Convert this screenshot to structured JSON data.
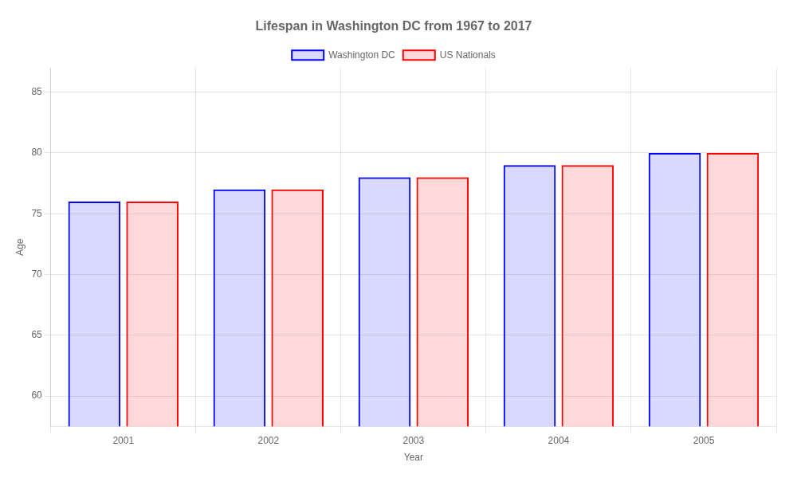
{
  "chart_data": {
    "type": "bar",
    "title": "Lifespan in Washington DC from 1967 to 2017",
    "x_label": "Year",
    "y_label": "Age",
    "categories": [
      "2001",
      "2002",
      "2003",
      "2004",
      "2005"
    ],
    "series": [
      {
        "name": "Washington DC",
        "color": "#0000ff",
        "values": [
          76,
          77,
          78,
          79,
          80
        ]
      },
      {
        "name": "US Nationals",
        "color": "#ff0000",
        "values": [
          76,
          77,
          78,
          79,
          80
        ]
      }
    ],
    "ylim": [
      57.5,
      87
    ],
    "yticks": [
      60,
      65,
      70,
      75,
      80,
      85
    ],
    "grid": true,
    "legend": "top"
  }
}
